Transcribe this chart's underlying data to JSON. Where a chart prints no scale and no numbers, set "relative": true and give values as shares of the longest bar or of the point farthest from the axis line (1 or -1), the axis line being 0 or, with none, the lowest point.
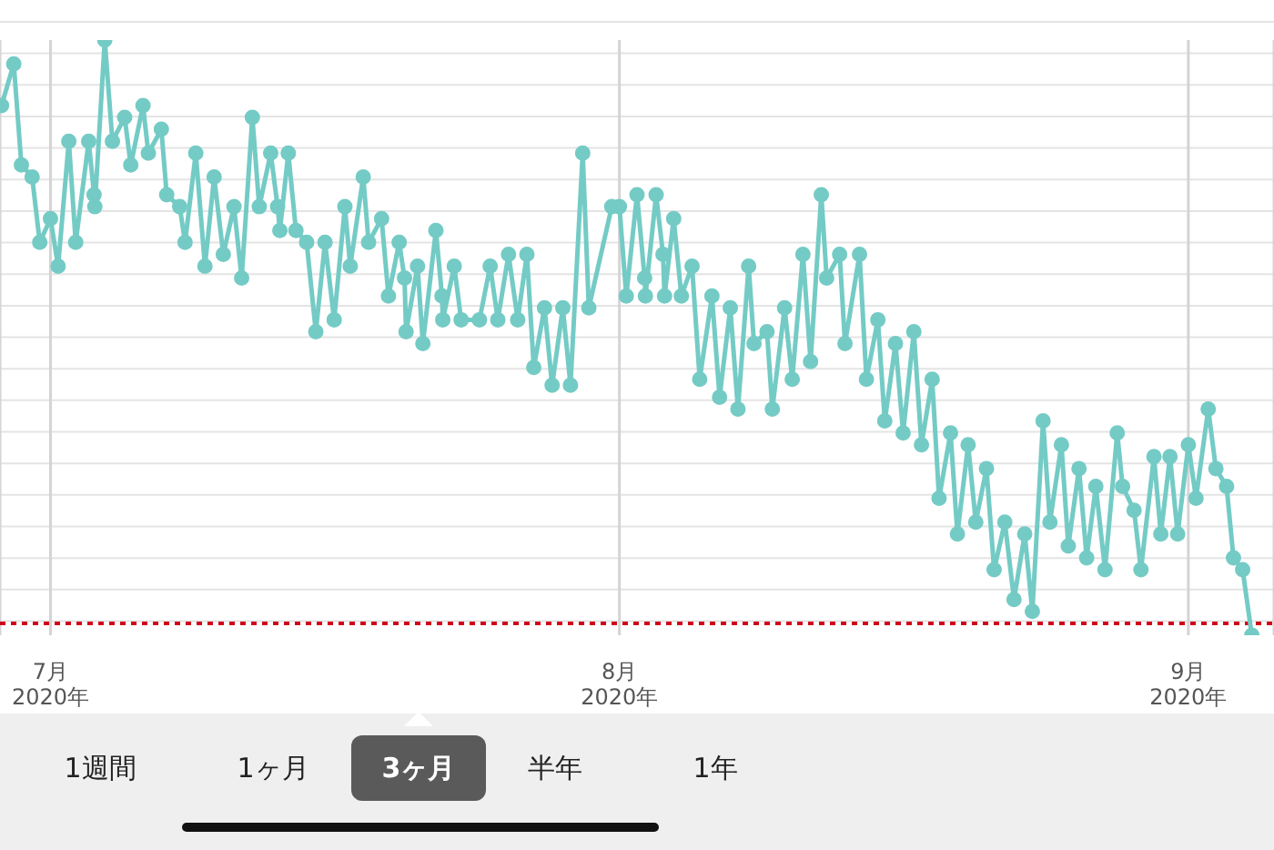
{
  "chart_data": {
    "type": "line",
    "relative": true,
    "marker": "circle",
    "grid": true,
    "xlim": [
      "2020-06-28T06:00",
      "2020-09-05T16:00"
    ],
    "xticks": [
      {
        "value": "2020-07-01",
        "label": "7月 2020年"
      },
      {
        "value": "2020-08-01",
        "label": "8月 2020年"
      },
      {
        "value": "2020-09-01",
        "label": "9月 2020年"
      }
    ],
    "x": [
      "2020-06-28T08:00",
      "2020-06-29T00:00",
      "2020-06-29T10:00",
      "2020-06-30T00:00",
      "2020-06-30T10:00",
      "2020-07-01T00:00",
      "2020-07-01T10:00",
      "2020-07-02T00:00",
      "2020-07-02T09:00",
      "2020-07-03T02:00",
      "2020-07-03T09:00",
      "2020-07-03T10:00",
      "2020-07-03T23:00",
      "2020-07-04T09:00",
      "2020-07-05T01:00",
      "2020-07-05T09:00",
      "2020-07-06T01:00",
      "2020-07-06T08:00",
      "2020-07-07T01:00",
      "2020-07-07T08:00",
      "2020-07-08T01:00",
      "2020-07-08T08:00",
      "2020-07-08T22:00",
      "2020-07-09T10:00",
      "2020-07-09T22:00",
      "2020-07-10T10:00",
      "2020-07-11T00:00",
      "2020-07-11T10:00",
      "2020-07-12T00:00",
      "2020-07-12T09:00",
      "2020-07-13T00:00",
      "2020-07-13T09:00",
      "2020-07-13T12:00",
      "2020-07-13T23:00",
      "2020-07-14T09:00",
      "2020-07-14T23:00",
      "2020-07-15T11:00",
      "2020-07-15T23:00",
      "2020-07-16T11:00",
      "2020-07-17T01:00",
      "2020-07-17T08:00",
      "2020-07-18T01:00",
      "2020-07-18T08:00",
      "2020-07-19T01:00",
      "2020-07-19T10:00",
      "2020-07-20T00:00",
      "2020-07-20T07:00",
      "2020-07-20T09:00",
      "2020-07-21T00:00",
      "2020-07-21T07:00",
      "2020-07-22T00:00",
      "2020-07-22T08:00",
      "2020-07-22T09:00",
      "2020-07-23T00:00",
      "2020-07-23T09:00",
      "2020-07-24T09:00",
      "2020-07-24T23:00",
      "2020-07-25T09:00",
      "2020-07-25T23:00",
      "2020-07-26T11:00",
      "2020-07-26T23:00",
      "2020-07-27T08:00",
      "2020-07-27T22:00",
      "2020-07-28T08:00",
      "2020-07-28T22:00",
      "2020-07-29T08:00",
      "2020-07-30T00:00",
      "2020-07-30T08:00",
      "2020-07-31T14:00",
      "2020-08-01T00:00",
      "2020-08-01T09:00",
      "2020-08-01T23:00",
      "2020-08-02T09:00",
      "2020-08-02T10:00",
      "2020-08-03T00:00",
      "2020-08-03T09:00",
      "2020-08-03T11:00",
      "2020-08-03T23:00",
      "2020-08-04T09:00",
      "2020-08-04T23:00",
      "2020-08-05T09:00",
      "2020-08-06T01:00",
      "2020-08-06T11:00",
      "2020-08-07T01:00",
      "2020-08-07T11:00",
      "2020-08-08T01:00",
      "2020-08-08T08:00",
      "2020-08-09T01:00",
      "2020-08-09T08:00",
      "2020-08-10T00:00",
      "2020-08-10T10:00",
      "2020-08-11T00:00",
      "2020-08-11T10:00",
      "2020-08-12T00:00",
      "2020-08-12T07:00",
      "2020-08-13T00:00",
      "2020-08-13T07:00",
      "2020-08-14T02:00",
      "2020-08-14T11:00",
      "2020-08-15T02:00",
      "2020-08-15T11:00",
      "2020-08-16T01:00",
      "2020-08-16T11:00",
      "2020-08-17T01:00",
      "2020-08-17T11:00",
      "2020-08-18T01:00",
      "2020-08-18T10:00",
      "2020-08-19T01:00",
      "2020-08-19T10:00",
      "2020-08-20T00:00",
      "2020-08-20T10:00",
      "2020-08-21T00:00",
      "2020-08-21T10:00",
      "2020-08-22T00:00",
      "2020-08-22T12:00",
      "2020-08-23T02:00",
      "2020-08-23T12:00",
      "2020-08-24T02:00",
      "2020-08-24T11:00",
      "2020-08-25T02:00",
      "2020-08-25T11:00",
      "2020-08-26T01:00",
      "2020-08-26T11:00",
      "2020-08-26T23:00",
      "2020-08-27T11:00",
      "2020-08-28T03:00",
      "2020-08-28T10:00",
      "2020-08-29T01:00",
      "2020-08-29T10:00",
      "2020-08-30T03:00",
      "2020-08-30T12:00",
      "2020-08-31T00:00",
      "2020-08-31T10:00",
      "2020-09-01T00:00",
      "2020-09-01T10:00",
      "2020-09-02T02:00",
      "2020-09-02T12:00",
      "2020-09-03T02:00",
      "2020-09-03T11:00",
      "2020-09-03T23:00",
      "2020-09-04T11:00"
    ],
    "series": [
      {
        "color": "#74cbc5",
        "values": [
          0.89,
          0.96,
          0.79,
          0.77,
          0.66,
          0.7,
          0.62,
          0.83,
          0.66,
          0.83,
          0.74,
          0.72,
          1,
          0.83,
          0.87,
          0.79,
          0.89,
          0.81,
          0.85,
          0.74,
          0.72,
          0.66,
          0.81,
          0.62,
          0.77,
          0.64,
          0.72,
          0.6,
          0.87,
          0.72,
          0.81,
          0.72,
          0.68,
          0.81,
          0.68,
          0.66,
          0.51,
          0.66,
          0.53,
          0.72,
          0.62,
          0.77,
          0.66,
          0.7,
          0.57,
          0.66,
          0.6,
          0.51,
          0.62,
          0.49,
          0.68,
          0.57,
          0.53,
          0.62,
          0.53,
          0.53,
          0.62,
          0.53,
          0.64,
          0.53,
          0.64,
          0.45,
          0.55,
          0.42,
          0.55,
          0.42,
          0.81,
          0.55,
          0.72,
          0.72,
          0.57,
          0.74,
          0.6,
          0.57,
          0.74,
          0.64,
          0.57,
          0.7,
          0.57,
          0.62,
          0.43,
          0.57,
          0.4,
          0.55,
          0.38,
          0.62,
          0.49,
          0.51,
          0.38,
          0.55,
          0.43,
          0.64,
          0.46,
          0.74,
          0.6,
          0.64,
          0.49,
          0.64,
          0.43,
          0.53,
          0.36,
          0.49,
          0.34,
          0.51,
          0.32,
          0.43,
          0.23,
          0.34,
          0.17,
          0.32,
          0.19,
          0.28,
          0.11,
          0.19,
          0.06,
          0.17,
          0.04,
          0.36,
          0.19,
          0.32,
          0.15,
          0.28,
          0.13,
          0.25,
          0.11,
          0.34,
          0.25,
          0.21,
          0.11,
          0.3,
          0.17,
          0.3,
          0.17,
          0.32,
          0.23,
          0.38,
          0.28,
          0.25,
          0.13,
          0.11,
          0
        ]
      }
    ],
    "ref_lines": [
      {
        "axis": "y",
        "value": 0.02,
        "color": "#d0021b",
        "line_style": "dotted"
      }
    ],
    "annotations": [
      "1週間",
      "1ヶ月",
      "3ヶ月",
      "半年",
      "1年"
    ]
  }
}
